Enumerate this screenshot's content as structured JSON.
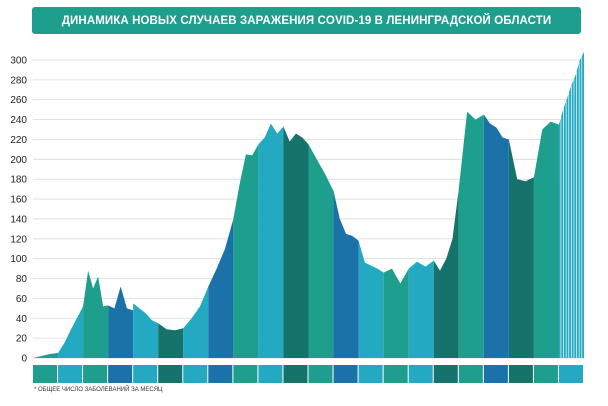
{
  "title": "ДИНАМИКА НОВЫХ СЛУЧАЕВ ЗАРАЖЕНИЯ COVID-19 В ЛЕНИНГРАДСКОЙ ОБЛАСТИ",
  "footnote": "* ОБЩЕЕ ЧИСЛО ЗАБОЛЕВАНИЙ ЗА МЕСЯЦ",
  "chart_data": {
    "type": "area",
    "title": "ДИНАМИКА НОВЫХ СЛУЧАЕВ ЗАРАЖЕНИЯ COVID-19 В ЛЕНИНГРАДСКОЙ ОБЛАСТИ",
    "xlabel": "",
    "ylabel": "",
    "ylim": [
      0,
      300
    ],
    "yticks": [
      0,
      20,
      40,
      60,
      80,
      100,
      120,
      140,
      160,
      180,
      200,
      220,
      240,
      260,
      280,
      300
    ],
    "grid": true,
    "legend": "none",
    "months": [
      {
        "color": "#1e9e8c",
        "values": [
          0,
          2,
          4,
          5
        ]
      },
      {
        "color": "#23a9c2",
        "values": [
          5,
          15,
          28,
          40,
          52
        ]
      },
      {
        "color": "#1e9e8c",
        "values": [
          52,
          88,
          70,
          82,
          52,
          53
        ]
      },
      {
        "color": "#1a72a8",
        "values": [
          53,
          50,
          72,
          50,
          48
        ]
      },
      {
        "color": "#23a9c2",
        "values": [
          55,
          50,
          45,
          38,
          35
        ]
      },
      {
        "color": "#16736b",
        "values": [
          35,
          29,
          28,
          30
        ]
      },
      {
        "color": "#23a9c2",
        "values": [
          30,
          40,
          52,
          72
        ]
      },
      {
        "color": "#1a72a8",
        "values": [
          72,
          90,
          110,
          140
        ]
      },
      {
        "color": "#1e9e8c",
        "values": [
          140,
          175,
          205,
          204,
          215
        ]
      },
      {
        "color": "#23a9c2",
        "values": [
          215,
          222,
          236,
          226,
          233
        ]
      },
      {
        "color": "#16736b",
        "values": [
          233,
          218,
          226,
          222,
          215
        ]
      },
      {
        "color": "#1e9e8c",
        "values": [
          215,
          200,
          185,
          168
        ]
      },
      {
        "color": "#1a72a8",
        "values": [
          168,
          140,
          125,
          123,
          118
        ]
      },
      {
        "color": "#23a9c2",
        "values": [
          118,
          96,
          93,
          90,
          86
        ]
      },
      {
        "color": "#1e9e8c",
        "values": [
          86,
          90,
          75,
          90
        ]
      },
      {
        "color": "#23a9c2",
        "values": [
          90,
          97,
          92,
          98
        ]
      },
      {
        "color": "#16736b",
        "values": [
          98,
          88,
          100,
          120,
          170
        ]
      },
      {
        "color": "#1e9e8c",
        "values": [
          170,
          248,
          240,
          245
        ]
      },
      {
        "color": "#1a72a8",
        "values": [
          245,
          236,
          232,
          222,
          220
        ]
      },
      {
        "color": "#16736b",
        "values": [
          220,
          180,
          178,
          182
        ]
      },
      {
        "color": "#1e9e8c",
        "values": [
          182,
          230,
          238,
          235
        ]
      },
      {
        "color": "#23a9c2",
        "stripes": true,
        "values": [
          235,
          250,
          262,
          275,
          285,
          300,
          308
        ]
      }
    ]
  }
}
